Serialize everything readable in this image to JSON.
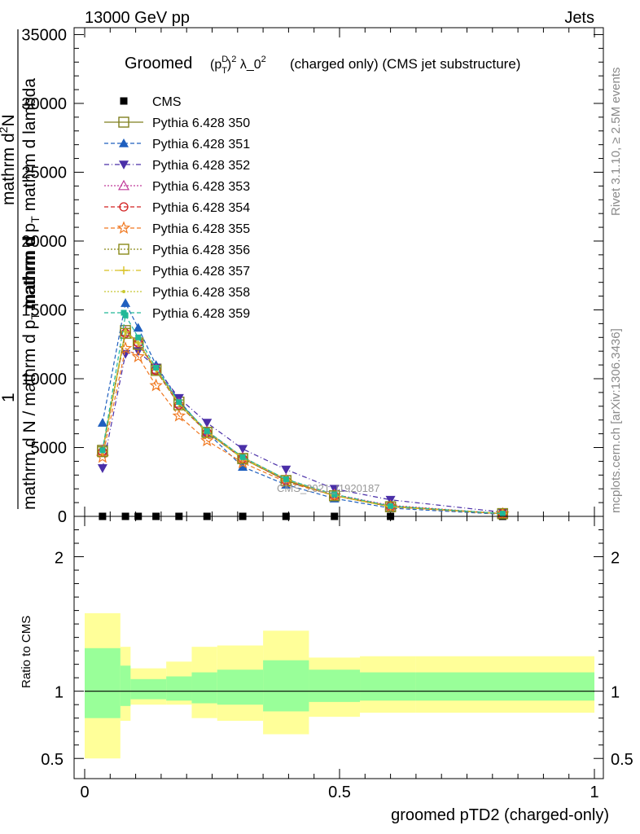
{
  "header": {
    "left": "13000 GeV pp",
    "right": "Jets"
  },
  "side_text": {
    "rivet": "Rivet 3.1.10, ≥ 2.5M events",
    "mcplots": "mcplots.cern.ch [arXiv:1306.3436]"
  },
  "watermark": "CMS_2021_I1920187",
  "chart_data": [
    {
      "type": "line",
      "title_prefix": "Groomed",
      "title_math": "(p_T^D)^2 λ_0^2",
      "title_suffix": "(charged only) (CMS jet substructure)",
      "ylabel": "mathrm d N / mathrm d p_T mathrm d lambda",
      "ylabel_prefactor": "1",
      "ylabel_top": "mathrm d²N",
      "ylabel_top_display": "mathrm d",
      "ylabel_bottom_display": "mathrm d N / mathrm d p",
      "ylabel_bottom_tail": "T",
      "ylabel_mid": "mathrm d",
      "ylabel_mid_sub": "T",
      "ylabel_frac_den": "mathrm d N / mathrm d p_T mathrm d",
      "ylabel_den_display": "mathrm d p mathrm d",
      "ylabel_num_display": "mathrm d N",
      "ylim": [
        0,
        35500
      ],
      "xlim": [
        -0.02,
        1.02
      ],
      "yticks": [
        0,
        5000,
        10000,
        15000,
        20000,
        25000,
        30000,
        35000
      ],
      "ytick_labels": [
        "0",
        "5000",
        "10000",
        "15000",
        "20000",
        "25000",
        "30000",
        "35000"
      ],
      "x": [
        0.035,
        0.08,
        0.105,
        0.14,
        0.185,
        0.24,
        0.31,
        0.395,
        0.49,
        0.6,
        0.82
      ],
      "series": [
        {
          "name": "CMS",
          "color": "#000000",
          "marker": "square-filled",
          "dash": "none",
          "values": [
            0,
            0,
            0,
            0,
            0,
            0,
            0,
            0,
            0,
            0,
            0
          ]
        },
        {
          "name": "Pythia 6.428 350",
          "color": "#7f7f1f",
          "marker": "square-open",
          "dash": "solid",
          "values": [
            4800,
            13500,
            12600,
            10700,
            8300,
            6100,
            4200,
            2600,
            1500,
            700,
            200
          ]
        },
        {
          "name": "Pythia 6.428 351",
          "color": "#1f5fbf",
          "marker": "triangle-up-filled",
          "dash": "dashed",
          "values": [
            6800,
            15500,
            13700,
            11000,
            8400,
            6100,
            3600,
            2300,
            1300,
            600,
            150
          ]
        },
        {
          "name": "Pythia 6.428 352",
          "color": "#4a2fa8",
          "marker": "triangle-down-filled",
          "dash": "dashdot",
          "values": [
            3500,
            11800,
            12000,
            10800,
            8600,
            6800,
            4900,
            3400,
            2000,
            1200,
            300
          ]
        },
        {
          "name": "Pythia 6.428 353",
          "color": "#c03a9a",
          "marker": "triangle-up-open",
          "dash": "dotted",
          "values": [
            4800,
            13400,
            12700,
            10700,
            8200,
            6200,
            4300,
            2700,
            1600,
            800,
            200
          ]
        },
        {
          "name": "Pythia 6.428 354",
          "color": "#d22020",
          "marker": "circle-open",
          "dash": "dashed",
          "values": [
            4700,
            13300,
            12600,
            10600,
            8100,
            6100,
            4200,
            2600,
            1500,
            750,
            200
          ]
        },
        {
          "name": "Pythia 6.428 355",
          "color": "#f07820",
          "marker": "star-open",
          "dash": "dashed",
          "values": [
            4300,
            12200,
            11600,
            9500,
            7300,
            5500,
            3900,
            2500,
            1500,
            700,
            180
          ]
        },
        {
          "name": "Pythia 6.428 356",
          "color": "#8a8a1a",
          "marker": "square-open",
          "dash": "dotted",
          "values": [
            4700,
            13300,
            12500,
            10600,
            8100,
            6100,
            4200,
            2600,
            1500,
            700,
            200
          ]
        },
        {
          "name": "Pythia 6.428 357",
          "color": "#d8c020",
          "marker": "cross",
          "dash": "dashdot",
          "values": [
            4700,
            13400,
            12600,
            10700,
            8200,
            6100,
            4200,
            2700,
            1500,
            700,
            200
          ]
        },
        {
          "name": "Pythia 6.428 358",
          "color": "#c8c830",
          "marker": "dot",
          "dash": "dotted",
          "values": [
            4800,
            13500,
            12600,
            10700,
            8200,
            6200,
            4300,
            2700,
            1500,
            750,
            200
          ]
        },
        {
          "name": "Pythia 6.428 359",
          "color": "#20b898",
          "marker": "square-small",
          "dash": "dashed",
          "values": [
            4800,
            14600,
            13000,
            10800,
            8300,
            6200,
            4300,
            2700,
            1600,
            750,
            200
          ]
        }
      ]
    },
    {
      "type": "area",
      "ylabel": "Ratio to CMS",
      "xlabel": "groomed pTD2 (charged-only)",
      "xticks": [
        0,
        0.5,
        1
      ],
      "xtick_labels": [
        "0",
        "0.5",
        "1"
      ],
      "yticks": [
        0.5,
        1,
        2
      ],
      "ytick_labels": [
        "0.5",
        "1",
        "2"
      ],
      "ylim": [
        0.35,
        2.3
      ],
      "bin_edges": [
        0,
        0.07,
        0.09,
        0.16,
        0.21,
        0.26,
        0.35,
        0.44,
        0.54,
        0.65,
        1.0
      ],
      "band_outer": {
        "color": "#ffff99",
        "lo": [
          0.5,
          0.78,
          0.9,
          0.9,
          0.8,
          0.78,
          0.68,
          0.81,
          0.84,
          0.84
        ],
        "hi": [
          1.58,
          1.33,
          1.17,
          1.22,
          1.33,
          1.34,
          1.45,
          1.25,
          1.26,
          1.26
        ]
      },
      "band_inner": {
        "color": "#99ff99",
        "lo": [
          0.8,
          0.89,
          0.94,
          0.93,
          0.91,
          0.9,
          0.85,
          0.92,
          0.93,
          0.93
        ],
        "hi": [
          1.32,
          1.19,
          1.09,
          1.11,
          1.14,
          1.16,
          1.23,
          1.16,
          1.14,
          1.14
        ]
      },
      "reference": 1
    }
  ]
}
